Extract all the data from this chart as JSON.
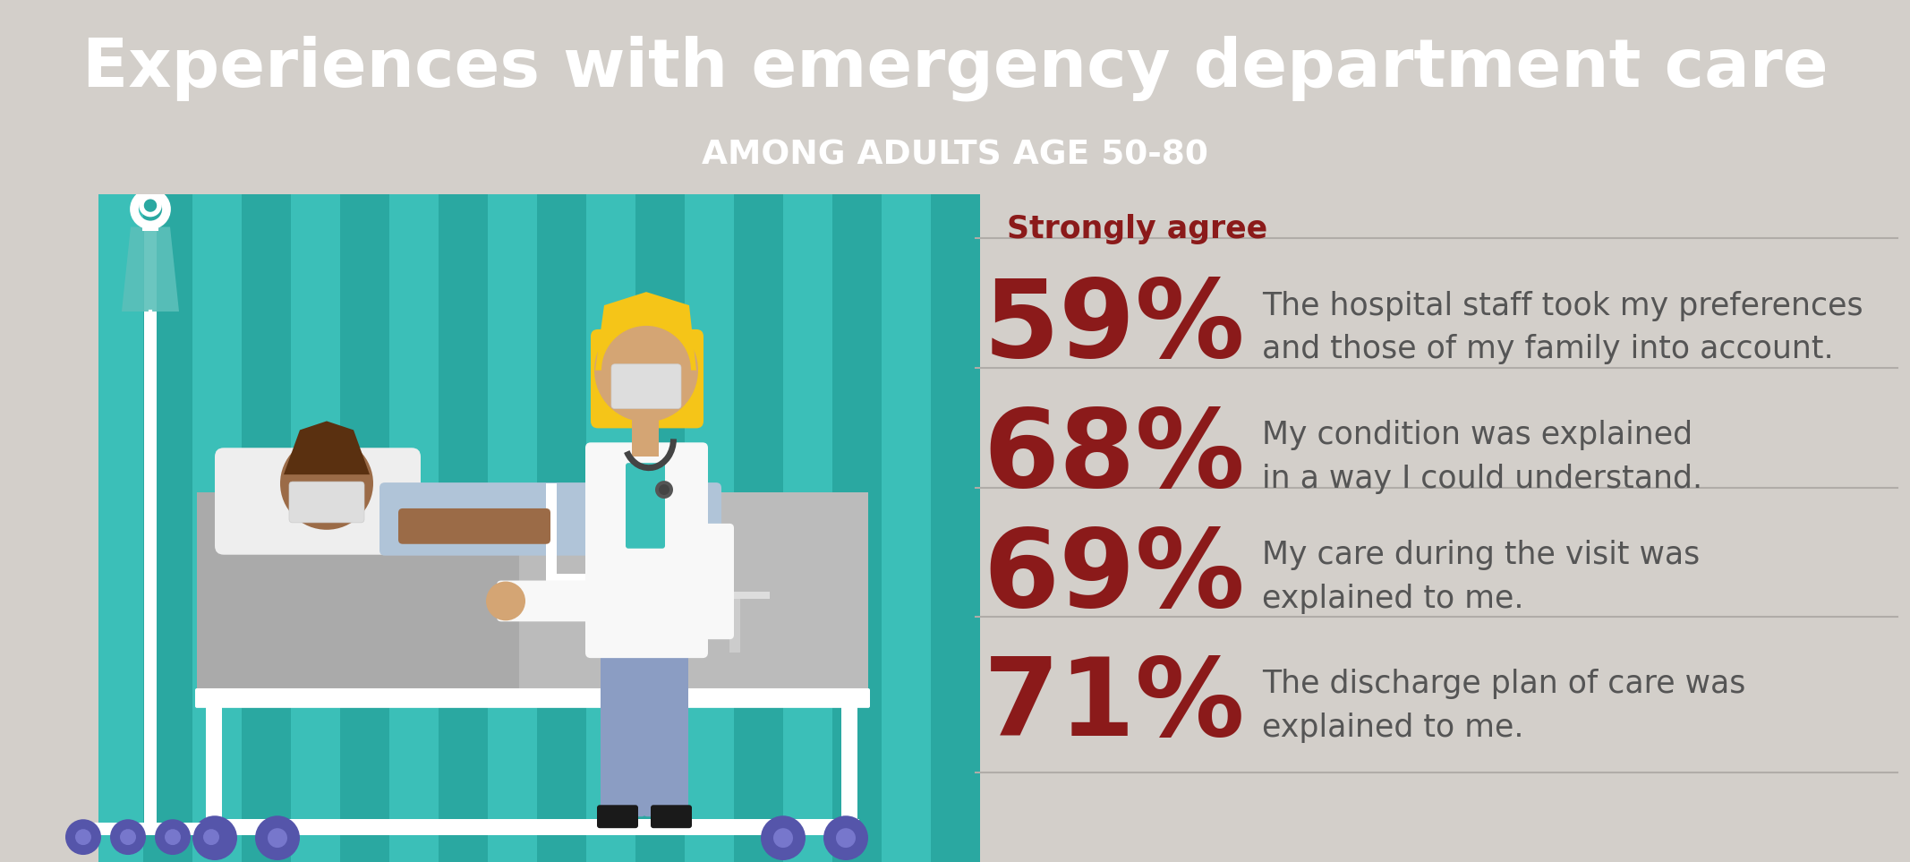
{
  "title": "Experiences with emergency department care",
  "subtitle": "AMONG ADULTS AGE 50-80",
  "title_color": "#ffffff",
  "subtitle_color": "#ffffff",
  "header_bg_color": "#8B1A1A",
  "body_bg_color": "#D3CFCA",
  "strongly_agree_label": "Strongly agree",
  "strongly_agree_color": "#8B1A1A",
  "stats": [
    {
      "percent": "59%",
      "description": "The hospital staff took my preferences\nand those of my family into account.",
      "pct_color": "#8B1A1A",
      "desc_color": "#555555"
    },
    {
      "percent": "68%",
      "description": "My condition was explained\nin a way I could understand.",
      "pct_color": "#8B1A1A",
      "desc_color": "#555555"
    },
    {
      "percent": "69%",
      "description": "My care during the visit was\nexplained to me.",
      "pct_color": "#8B1A1A",
      "desc_color": "#555555"
    },
    {
      "percent": "71%",
      "description": "The discharge plan of care was\nexplained to me.",
      "pct_color": "#8B1A1A",
      "desc_color": "#555555"
    }
  ],
  "divider_color": "#b0aca8",
  "teal_light": "#3BBFB8",
  "teal_dark": "#2AA8A1",
  "bed_gray": "#BBBBBB",
  "bed_dark_gray": "#999999",
  "bed_frame_white": "#ffffff",
  "pillow_color": "#eeeeee",
  "patient_skin": "#9B6B47",
  "patient_hair": "#5a3010",
  "gown_color": "#B0C4D8",
  "mask_color": "#DDDDDD",
  "doctor_skin": "#D4A574",
  "doctor_hair": "#F5C518",
  "doctor_coat": "#f8f8f8",
  "scrubs_color": "#8B9DC3",
  "scrubs_dark": "#7A8CB2",
  "iv_white": "#ffffff",
  "iv_bag_teal": "#5BC0BA",
  "wheel_blue": "#5555AA",
  "steth_color": "#444444"
}
